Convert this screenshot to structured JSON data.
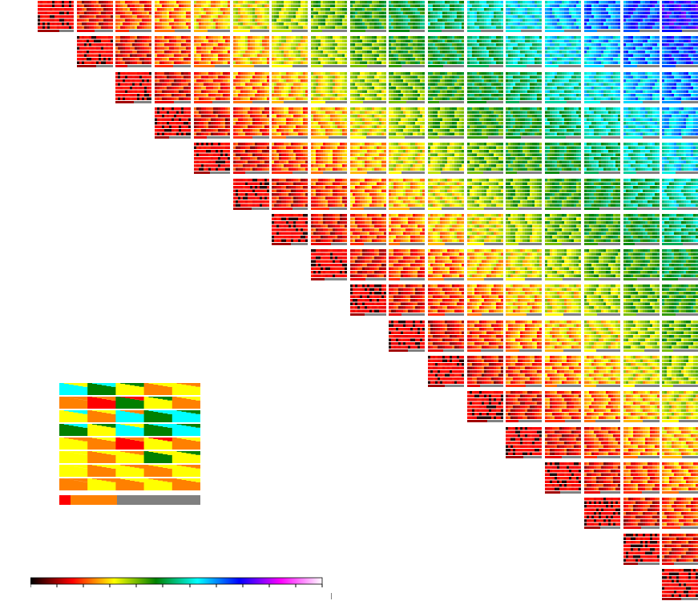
{
  "figure": {
    "grid_size": 17,
    "palette": [
      "#000000",
      "#ff0000",
      "#ff8000",
      "#ffff00",
      "#008000",
      "#00ffff",
      "#0080ff",
      "#0000ff",
      "#8000ff",
      "#ff00ff",
      "#808080"
    ],
    "colormap_stops": [
      "#000000",
      "#ff0000",
      "#ffff00",
      "#008000",
      "#00ffff",
      "#0000ff",
      "#ff00ff",
      "#ffffff"
    ],
    "missing_color": "#808080",
    "colorbar_ticks": 11
  }
}
